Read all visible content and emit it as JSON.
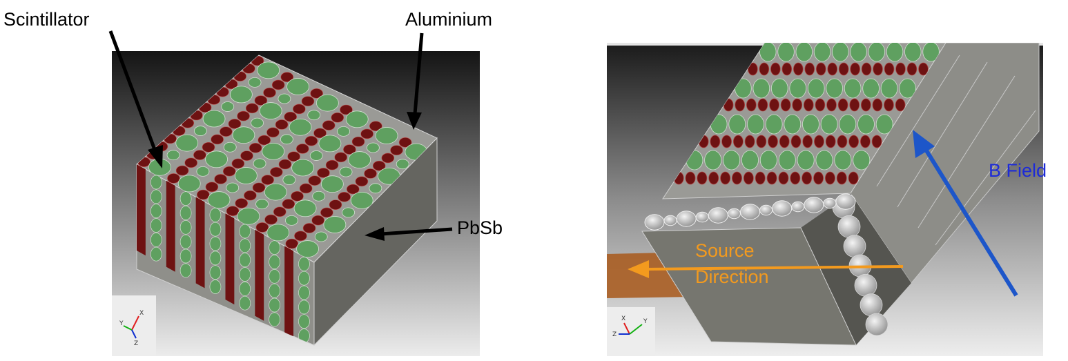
{
  "left_panel": {
    "labels": {
      "scintillator": "Scintillator",
      "aluminium": "Aluminium",
      "pbsb": "PbSb"
    },
    "axes_triad": {
      "x": "X",
      "y": "Y",
      "z": "Z"
    }
  },
  "right_panel": {
    "labels": {
      "source_line1": "Source",
      "source_line2": "Direction",
      "b_field": "B Field"
    },
    "axes_triad": {
      "x": "X",
      "y": "Y",
      "z": "Z"
    }
  },
  "colors": {
    "scintillator": "#5fa060",
    "aluminium": "#6e1212",
    "pbsb": "#8c8c88",
    "source_arrow": "#f39a1e",
    "b_field_arrow": "#1d56c9",
    "b_field_text": "#1d2bd8",
    "source_box": "#b0621a"
  },
  "icons": [
    "axis-triad-icon",
    "arrow-icon"
  ]
}
